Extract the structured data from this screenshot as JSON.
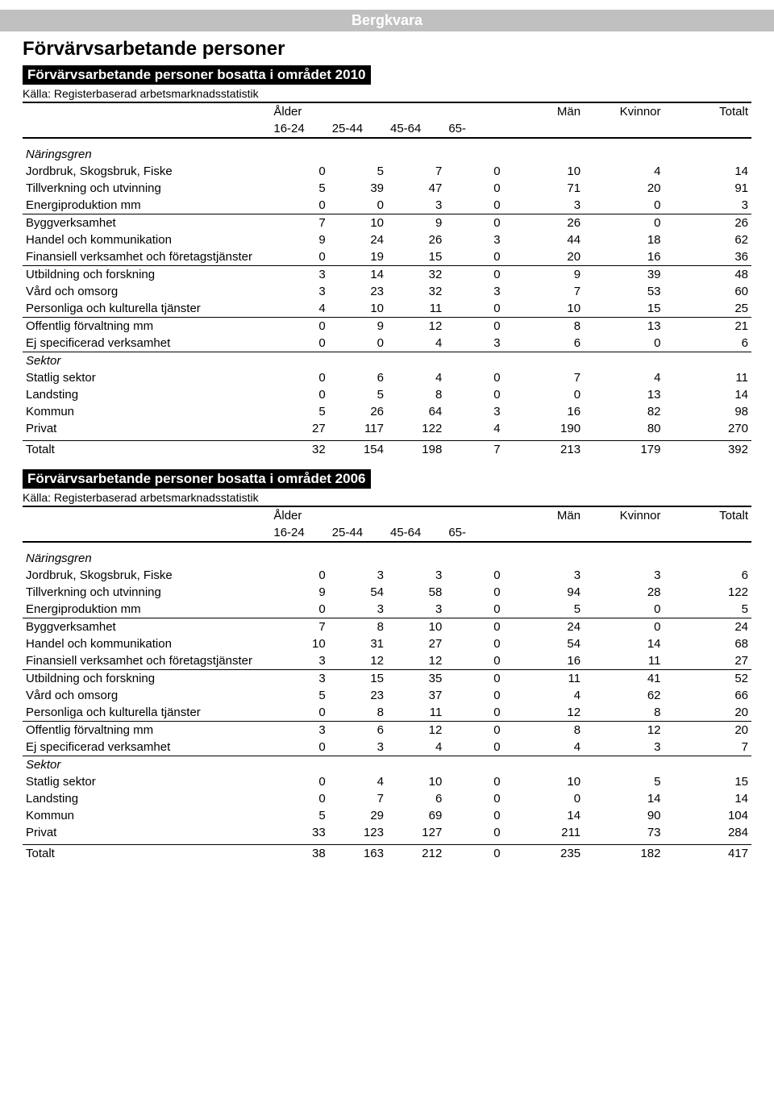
{
  "banner": "Bergkvara",
  "heading": "Förvärvsarbetande personer",
  "tables": [
    {
      "title": "Förvärvsarbetande personer bosatta i området 2010",
      "source": "Källa: Registerbaserad arbetsmarknadsstatistik",
      "colgroup_alder": "Ålder",
      "col_man": "Män",
      "col_kvinnor": "Kvinnor",
      "col_totalt": "Totalt",
      "age_cols": [
        "16-24",
        "25-44",
        "45-64",
        "65-"
      ],
      "groups": [
        {
          "label": "Näringsgren",
          "rows": [
            {
              "label": "Jordbruk, Skogsbruk, Fiske",
              "v": [
                0,
                5,
                7,
                0,
                10,
                4,
                14
              ]
            },
            {
              "label": "Tillverkning och utvinning",
              "v": [
                5,
                39,
                47,
                0,
                71,
                20,
                91
              ]
            },
            {
              "label": "Energiproduktion mm",
              "v": [
                0,
                0,
                3,
                0,
                3,
                0,
                3
              ]
            }
          ]
        },
        {
          "rows": [
            {
              "label": "Byggverksamhet",
              "v": [
                7,
                10,
                9,
                0,
                26,
                0,
                26
              ]
            },
            {
              "label": "Handel och kommunikation",
              "v": [
                9,
                24,
                26,
                3,
                44,
                18,
                62
              ]
            },
            {
              "label": "Finansiell verksamhet och företagstjänster",
              "v": [
                0,
                19,
                15,
                0,
                20,
                16,
                36
              ]
            }
          ]
        },
        {
          "rows": [
            {
              "label": "Utbildning och forskning",
              "v": [
                3,
                14,
                32,
                0,
                9,
                39,
                48
              ]
            },
            {
              "label": "Vård och omsorg",
              "v": [
                3,
                23,
                32,
                3,
                7,
                53,
                60
              ]
            },
            {
              "label": "Personliga och kulturella tjänster",
              "v": [
                4,
                10,
                11,
                0,
                10,
                15,
                25
              ]
            }
          ]
        },
        {
          "rows": [
            {
              "label": "Offentlig förvaltning mm",
              "v": [
                0,
                9,
                12,
                0,
                8,
                13,
                21
              ]
            },
            {
              "label": "Ej specificerad verksamhet",
              "v": [
                0,
                0,
                4,
                3,
                6,
                0,
                6
              ]
            }
          ]
        },
        {
          "label": "Sektor",
          "rows": [
            {
              "label": "Statlig sektor",
              "v": [
                0,
                6,
                4,
                0,
                7,
                4,
                11
              ]
            },
            {
              "label": "Landsting",
              "v": [
                0,
                5,
                8,
                0,
                0,
                13,
                14
              ]
            },
            {
              "label": "Kommun",
              "v": [
                5,
                26,
                64,
                3,
                16,
                82,
                98
              ]
            },
            {
              "label": "Privat",
              "v": [
                27,
                117,
                122,
                4,
                190,
                80,
                270
              ]
            }
          ]
        }
      ],
      "total": {
        "label": "Totalt",
        "v": [
          32,
          154,
          198,
          7,
          213,
          179,
          392
        ]
      }
    },
    {
      "title": "Förvärvsarbetande personer bosatta i området 2006",
      "source": "Källa: Registerbaserad arbetsmarknadsstatistik",
      "colgroup_alder": "Ålder",
      "col_man": "Män",
      "col_kvinnor": "Kvinnor",
      "col_totalt": "Totalt",
      "age_cols": [
        "16-24",
        "25-44",
        "45-64",
        "65-"
      ],
      "groups": [
        {
          "label": "Näringsgren",
          "rows": [
            {
              "label": "Jordbruk, Skogsbruk, Fiske",
              "v": [
                0,
                3,
                3,
                0,
                3,
                3,
                6
              ]
            },
            {
              "label": "Tillverkning och utvinning",
              "v": [
                9,
                54,
                58,
                0,
                94,
                28,
                122
              ]
            },
            {
              "label": "Energiproduktion mm",
              "v": [
                0,
                3,
                3,
                0,
                5,
                0,
                5
              ]
            }
          ]
        },
        {
          "rows": [
            {
              "label": "Byggverksamhet",
              "v": [
                7,
                8,
                10,
                0,
                24,
                0,
                24
              ]
            },
            {
              "label": "Handel och kommunikation",
              "v": [
                10,
                31,
                27,
                0,
                54,
                14,
                68
              ]
            },
            {
              "label": "Finansiell verksamhet och företagstjänster",
              "v": [
                3,
                12,
                12,
                0,
                16,
                11,
                27
              ]
            }
          ]
        },
        {
          "rows": [
            {
              "label": "Utbildning och forskning",
              "v": [
                3,
                15,
                35,
                0,
                11,
                41,
                52
              ]
            },
            {
              "label": "Vård och omsorg",
              "v": [
                5,
                23,
                37,
                0,
                4,
                62,
                66
              ]
            },
            {
              "label": "Personliga och kulturella tjänster",
              "v": [
                0,
                8,
                11,
                0,
                12,
                8,
                20
              ]
            }
          ]
        },
        {
          "rows": [
            {
              "label": "Offentlig förvaltning mm",
              "v": [
                3,
                6,
                12,
                0,
                8,
                12,
                20
              ]
            },
            {
              "label": "Ej specificerad verksamhet",
              "v": [
                0,
                3,
                4,
                0,
                4,
                3,
                7
              ]
            }
          ]
        },
        {
          "label": "Sektor",
          "rows": [
            {
              "label": "Statlig sektor",
              "v": [
                0,
                4,
                10,
                0,
                10,
                5,
                15
              ]
            },
            {
              "label": "Landsting",
              "v": [
                0,
                7,
                6,
                0,
                0,
                14,
                14
              ]
            },
            {
              "label": "Kommun",
              "v": [
                5,
                29,
                69,
                0,
                14,
                90,
                104
              ]
            },
            {
              "label": "Privat",
              "v": [
                33,
                123,
                127,
                0,
                211,
                73,
                284
              ]
            }
          ]
        }
      ],
      "total": {
        "label": "Totalt",
        "v": [
          38,
          163,
          212,
          0,
          235,
          182,
          417
        ]
      }
    }
  ]
}
